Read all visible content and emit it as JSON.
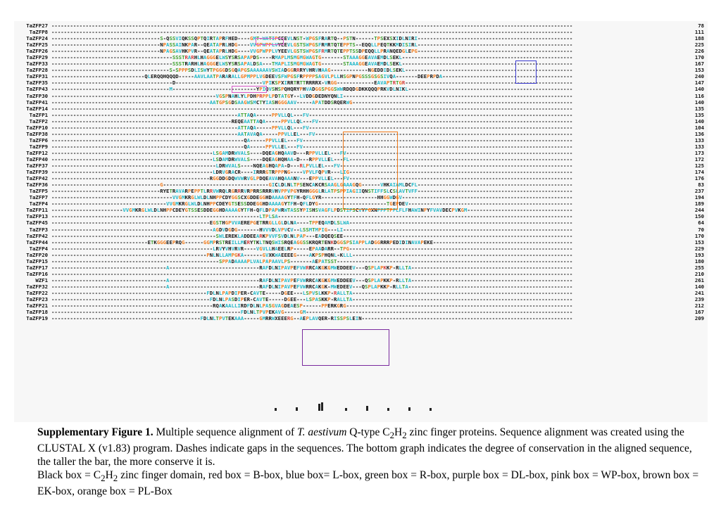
{
  "alignment": {
    "rows": [
      {
        "name": "TaZFP27",
        "num": "78",
        "seq": ""
      },
      {
        "name": "TaZFP8",
        "num": "111",
        "seq": ""
      },
      {
        "name": "TaZFP24",
        "num": "188",
        "seq": "S-QSSVIQKSSQPTQIRTAPRFHED----GMT-WATIPCEEVLNST-WPGSFRARTQ--PSTN------TPSEXSXIDLNIRI"
      },
      {
        "name": "TaZFP25",
        "num": "225",
        "seq": "NPASSAINKPAR--QEATAPRLHDG----VVGPWPPLVYEEVLGSTSWPGSFRMRTQTEPPTS--EQQLLPEQTKKMDISIRL"
      },
      {
        "name": "TaZFP26",
        "num": "226",
        "seq": "NPAGSAVHKPVR--QEATAPRLHDG----VVGPWPPLVYEEVLGSTSWPGSFRMRTQTEPPTSSDPEQQLLPRANQEDGLEPG"
      },
      {
        "name": "TaZFP29",
        "num": "170",
        "seq": "SSSTRARHLHAGGGELWSYSRSAPAPDS----RMAPLMSMGMGWAGTG-------STAAAGGEAVAEMDLSEKL"
      },
      {
        "name": "TaZFP33",
        "num": "167",
        "seq": "SSSTRARHLHAGGGELWSYSRSAPALDSA---TMAPLISMGMGWAGTG-------STAAAGGEAVAEMDLSEKL"
      },
      {
        "name": "TaZFP28",
        "num": "153",
        "seq": "S-SPPPSDLISWYTPGGGDSGQAPGSAAAAAAVSWIADGGRRRYVHRVHAAG------------NGEDDIDLSEKL"
      },
      {
        "name": "TaZFP31",
        "num": "240",
        "seq": "QLERQQHQQQD-----AAVLAATPARARALLGPMPPLVGDEEVSFWPGSFRPPPPSAGVLPLLHSGPNPGSSSGSGSIVQA-------DEEPRPDA"
      },
      {
        "name": "TaZFP35",
        "num": "147",
        "seq": "D----------------------------VPIKSPXIRRTRTTRRRRX-VRGG------------EAVAPTRTGR"
      },
      {
        "name": "TaZFP43",
        "num": "140",
        "seq": "M---------------------------YPIQVSHSPQHQRYPHVADGGSPGGSWWRDQDGDKKQQQPRKVDLNIKL"
      },
      {
        "name": "TaZFP30",
        "num": "116",
        "seq": "VGSPNAHLYLPDHPRPPLPDTATGY--LVDDGDEDNYQNLI"
      },
      {
        "name": "TaZFP41",
        "num": "140",
        "seq": "AATGPSGDSAAGWSMCTYIASHGGGAAV-----APATDDSRQERWG"
      },
      {
        "name": "TaZFP14",
        "num": "135",
        "seq": ""
      },
      {
        "name": "TaZFP1",
        "num": "135",
        "seq": "ATTAQA-----PPVLLQL---FV"
      },
      {
        "name": "TaZFP2",
        "num": "140",
        "seq": "REQEAATTAQA-----PPVLLQL---FV"
      },
      {
        "name": "TaZFP10",
        "num": "104",
        "seq": "ATTAQA-----PPVLLQL---FV"
      },
      {
        "name": "TaZFP38",
        "num": "136",
        "seq": "AATAVAQA-----PPVLLEL---FV"
      },
      {
        "name": "TaZFP6",
        "num": "133",
        "seq": "QA-----PPVLLEL---FV"
      },
      {
        "name": "TaZFP9",
        "num": "133",
        "seq": "QA-----PPVLLEL---FV"
      },
      {
        "name": "TaZFP12",
        "num": "173",
        "seq": "LSGAMDRWVALS----DQEAGHQAAVD---RPPVLLEL---FV"
      },
      {
        "name": "TaZFP40",
        "num": "172",
        "seq": "LSDAMDRWVALS----DQEAGHQHAA-D---RPPVLLEL---FL"
      },
      {
        "name": "TaZFP37",
        "num": "125",
        "seq": "LDRWVALS----NQEAGHQAPA-D---RLPVLLEL---FV"
      },
      {
        "name": "TaZFP39",
        "num": "174",
        "seq": "LDRVGRACR----IRRRGTRPPPNG----VPVLFQPVR---LIG"
      },
      {
        "name": "TaZFP42",
        "num": "176",
        "seq": "RGGDDGDQWVWRVGLPDQEAVAHQAAANV---EPPVLLEL---FV"
      },
      {
        "name": "TaZFP36",
        "num": "83",
        "seq": "G----------------------------------GICLDLNLTPSENCAKCRSAAGLGAAAGQG------VHKAIAMLDCFL"
      },
      {
        "name": "TaZFP5",
        "num": "237",
        "seq": "RYETRAVARPEPPTLRRVWRQLRGRRRVRPRRSRRRVHVPPVPGYRHHGGGLRLATPSPPIAGIIQNSTIFFSLCSLAVTVFF"
      },
      {
        "name": "TaZFP7",
        "num": "194",
        "seq": "VVGMKRGLWLDLNHPPCDYGGSCXGDDEGGHDAAAAGYTFH-QFLGYR------------------HHGGWDGV"
      },
      {
        "name": "TaZFP4",
        "num": "189",
        "seq": "VVGMKRGLWLDLNHPPCDEYGTSESSDDEGGHDAAAAGYTFH-QFLDYG----------------------TGEPDEV"
      },
      {
        "name": "TaZFP11",
        "num": "244",
        "seq": "VVGMKRGLWLDLNHPPCDEYGTSSESDDEGGHDAAAAGYTFH-QFLDPAPWRWTASSYPISHSVAGFLPDSTIFSCVYFGXNFFFTPFLFLFHAWINPYFVAVDECPVKGM"
      },
      {
        "name": "TaZFP13",
        "num": "150",
        "seq": "LTPLSA-"
      },
      {
        "name": "TaZFP45",
        "num": "64",
        "seq": "EGSTHGPVVAEREPGETRRGLLGLDLNA----TPPEQAMDLSLWA"
      },
      {
        "name": "TaZFP3",
        "num": "70",
        "seq": "AGDVDGDG-------HVVVDLVPVCV--LSSMTMPIG---LI"
      },
      {
        "name": "TaZFP42b",
        "num": "170",
        "seq": "SWLEREKLADDEEARKPVVFSVDLNLPAP---EADQEQSEE"
      },
      {
        "name": "TaZFP44",
        "num": "153",
        "seq": "ETKGGGEEPRQG------GGMPRSTREILLMERYTKLTNQSWISRQEAGGSSKRQRTENKDGGSPSIAPPLADGGRRRPEDIDINAVAPEKE"
      },
      {
        "name": "TaZFP4b",
        "num": "229",
        "seq": "LRVYVHVRVR----VGVLLHAEELRP-----EPAADARR--TPG"
      },
      {
        "name": "TaZFP20",
        "num": "193",
        "seq": "PNLNLLAMPGKA------GVXKWAEEEEG----AKPSPHQNL-KLLL"
      },
      {
        "name": "TaZFP15",
        "num": "180",
        "seq": "SPPADAAAAPLVALPAPAAVLPS-------AEPATSST"
      },
      {
        "name": "TaZFP17",
        "num": "255",
        "seq": "A-----------------------------RAFDLNIPAVPEFVWRRCAKGKGMWEDDEEV---QSPLAPKKP-RLLTA"
      },
      {
        "name": "TaZFP16",
        "num": "210",
        "seq": ""
      },
      {
        "name": "WZF1",
        "num": "261",
        "seq": "A-----------------------------RAFDLNIPAVPEFVWRRCAKGKGMWEDDEEV---QSPLAPKKP-RLLTA"
      },
      {
        "name": "TaZFP32",
        "num": "140",
        "seq": "A-----------------------------RAFDLNIPAVPEFVWRRCAKGK-MWEDEEV---QSPLAPKKP-RLLTA"
      },
      {
        "name": "TaZFP22",
        "num": "241",
        "seq": "FDLNLPAPDIPER-CAVTE-----DGEE---LSPVSLKKP-RALLTA"
      },
      {
        "name": "TaZFP23",
        "num": "239",
        "seq": "FDLNLPASDIPER-CAVTE-----DGEE---LSPASKKP-RALLTA"
      },
      {
        "name": "TaZFP21",
        "num": "212",
        "seq": "RQAKAALLIRDFDLNLPASGVAGDEAESP------PPERKGRG"
      },
      {
        "name": "TaZFP18",
        "num": "167",
        "seq": "FDLNLTPVPEKAVG-----GM"
      },
      {
        "name": "TaZFP19",
        "num": "209",
        "seq": "FDLNLTPVTEKAAA-----GMRRWXEEERG--AEPLAVQER-RISSPSLEIN"
      }
    ]
  },
  "caption": {
    "label": "Supplementary Figure 1.",
    "text_1": " Multiple sequence alignment of ",
    "species": "T. aestivum",
    "text_2": " Q-type C",
    "sub_2a": "2",
    "text_3": "H",
    "sub_2b": "2",
    "text_4": " zinc finger proteins. Sequence alignment was created using the CLUSTAL X (v1.83) program. Dashes indicate gaps in the sequences. The bottom graph indicates the degree of conservation in the aligned sequence, the taller the bar, the more conserve it is.",
    "legend_1": "Black box = C",
    "legend_sub_a": "2",
    "legend_2": "H",
    "legend_sub_b": "2",
    "legend_3": " zinc finger domain, red box = B-box, blue box= L-box,  green box = R-box, purple box = DL-box,  pink box = WP-box, brown box = EK-box,  orange box = PL-Box"
  },
  "colors": {
    "background": "#f7f7f7",
    "box_pink": "#d85ac8",
    "box_orange": "#f07a1a",
    "box_blue": "#3a3ad0",
    "box_purple": "#7a2a9e",
    "residue_teal": "#21b8c8",
    "residue_orange": "#f07a1a",
    "residue_green": "#3a9e2a",
    "residue_magenta": "#c93cc4"
  }
}
